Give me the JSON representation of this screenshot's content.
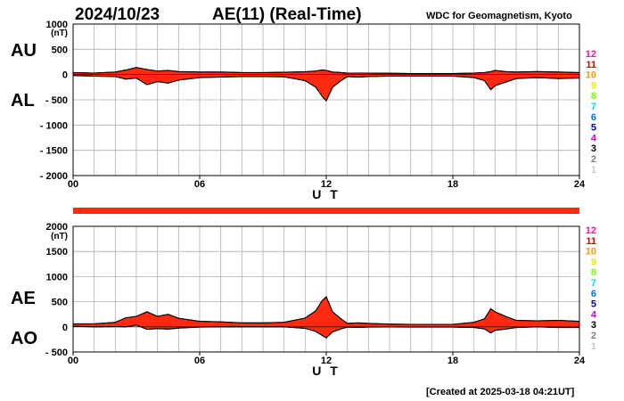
{
  "header": {
    "date": "2024/10/23",
    "title": "AE(11) (Real-Time)",
    "institution": "WDC for Geomagnetism, Kyoto"
  },
  "footer": {
    "created": "[Created at 2025-03-18 04:21UT]"
  },
  "colors": {
    "fill": "#ff2a10",
    "grid": "#b0b0b0",
    "divider": "#ff2a10"
  },
  "legend": {
    "items": [
      {
        "label": "12",
        "color": "#ff1493"
      },
      {
        "label": "11",
        "color": "#e00000"
      },
      {
        "label": "10",
        "color": "#ff9900"
      },
      {
        "label": "9",
        "color": "#e8e800"
      },
      {
        "label": "8",
        "color": "#7fff00"
      },
      {
        "label": "7",
        "color": "#00e0e0"
      },
      {
        "label": "6",
        "color": "#0070ff"
      },
      {
        "label": "5",
        "color": "#0000c0"
      },
      {
        "label": "4",
        "color": "#d000d0"
      },
      {
        "label": "3",
        "color": "#000000"
      },
      {
        "label": "2",
        "color": "#808080"
      },
      {
        "label": "1",
        "color": "#c8c8c8"
      }
    ]
  },
  "chart_data": [
    {
      "type": "area",
      "panel": "AU/AL",
      "upper_label": "AU",
      "lower_label": "AL",
      "unit": "(nT)",
      "xlabel": "U T",
      "xlim": [
        0,
        24
      ],
      "xticks": [
        "00",
        "06",
        "12",
        "18",
        "24"
      ],
      "ylim": [
        -2000,
        1000
      ],
      "yticks": [
        "1000",
        "500",
        "0",
        "- 500",
        "- 1000",
        "- 1500",
        "- 2000"
      ],
      "grid": true,
      "x": [
        0,
        1,
        2,
        2.5,
        3,
        3.5,
        4,
        4.5,
        5,
        6,
        7,
        8,
        9,
        10,
        11,
        11.5,
        11.8,
        12,
        12.3,
        12.7,
        13,
        13.5,
        14,
        15,
        16,
        17,
        18,
        19,
        19.5,
        19.8,
        20,
        20.5,
        21,
        22,
        23,
        24
      ],
      "series": [
        {
          "name": "AU",
          "values": [
            40,
            30,
            50,
            90,
            140,
            100,
            70,
            80,
            60,
            50,
            50,
            40,
            40,
            45,
            55,
            70,
            90,
            80,
            50,
            40,
            30,
            30,
            30,
            25,
            20,
            20,
            20,
            30,
            40,
            60,
            80,
            60,
            50,
            60,
            50,
            40
          ]
        },
        {
          "name": "AL",
          "values": [
            -20,
            -30,
            -40,
            -90,
            -70,
            -200,
            -140,
            -170,
            -110,
            -60,
            -50,
            -40,
            -40,
            -45,
            -120,
            -250,
            -430,
            -520,
            -250,
            -120,
            -40,
            -50,
            -40,
            -30,
            -30,
            -30,
            -30,
            -60,
            -120,
            -300,
            -220,
            -150,
            -80,
            -60,
            -80,
            -70
          ]
        }
      ]
    },
    {
      "type": "area",
      "panel": "AE/AO",
      "upper_label": "AE",
      "lower_label": "AO",
      "unit": "(nT)",
      "xlabel": "U T",
      "xlim": [
        0,
        24
      ],
      "xticks": [
        "00",
        "06",
        "12",
        "18",
        "24"
      ],
      "ylim": [
        -500,
        2000
      ],
      "yticks": [
        "2000",
        "1500",
        "1000",
        "500",
        "0",
        "- 500"
      ],
      "grid": true,
      "x": [
        0,
        1,
        2,
        2.5,
        3,
        3.5,
        4,
        4.5,
        5,
        6,
        7,
        8,
        9,
        10,
        11,
        11.5,
        11.8,
        12,
        12.3,
        12.7,
        13,
        13.5,
        14,
        15,
        16,
        17,
        18,
        19,
        19.5,
        19.8,
        20,
        20.5,
        21,
        22,
        23,
        24
      ],
      "series": [
        {
          "name": "AE",
          "values": [
            60,
            60,
            90,
            180,
            210,
            300,
            210,
            250,
            170,
            110,
            100,
            80,
            80,
            90,
            175,
            320,
            520,
            600,
            300,
            160,
            70,
            80,
            70,
            55,
            50,
            50,
            50,
            90,
            160,
            360,
            300,
            210,
            130,
            120,
            130,
            110
          ]
        },
        {
          "name": "AO",
          "values": [
            10,
            0,
            5,
            0,
            35,
            -50,
            -35,
            -45,
            -25,
            -5,
            0,
            0,
            0,
            0,
            -30,
            -90,
            -170,
            -220,
            -100,
            -40,
            -5,
            -10,
            -5,
            -3,
            -5,
            -5,
            -5,
            -15,
            -40,
            -120,
            -70,
            -45,
            -15,
            0,
            -15,
            -15
          ]
        }
      ]
    }
  ]
}
